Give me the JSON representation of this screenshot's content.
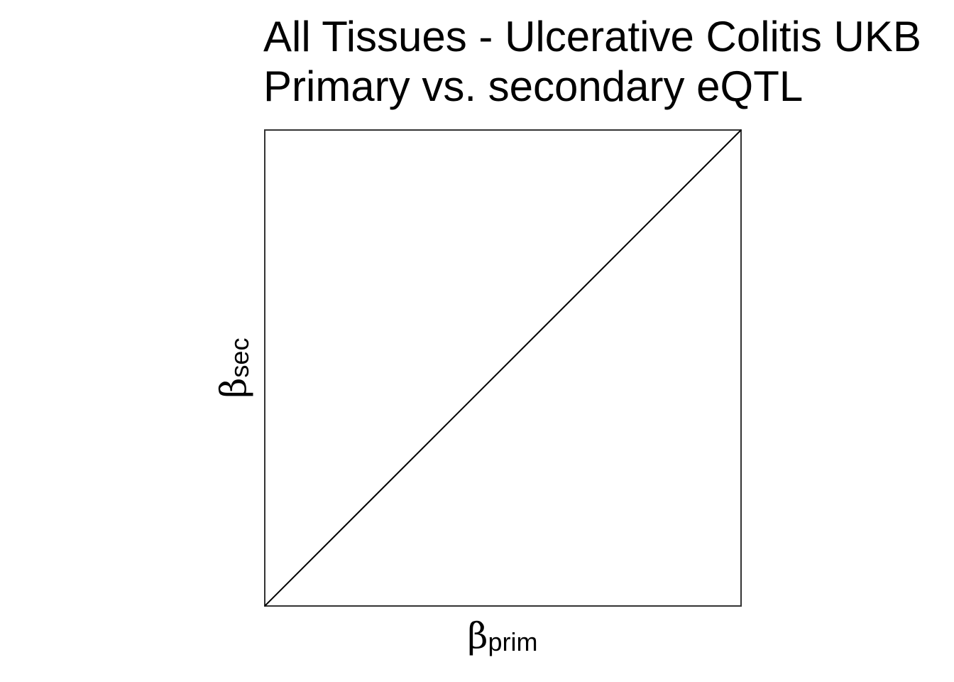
{
  "chart_data": {
    "type": "line",
    "title_lines": [
      "All Tissues - Ulcerative Colitis UKB",
      "Primary vs. secondary eQTL"
    ],
    "xlabel": {
      "symbol": "β",
      "subscript": "prim"
    },
    "ylabel": {
      "symbol": "β",
      "subscript": "sec"
    },
    "x_ticks": [],
    "y_ticks": [],
    "grid": false,
    "series": [
      {
        "x": [
          0,
          1
        ],
        "y": [
          0,
          1
        ]
      }
    ],
    "xlim": [
      0,
      1
    ],
    "ylim": [
      0,
      1
    ]
  }
}
